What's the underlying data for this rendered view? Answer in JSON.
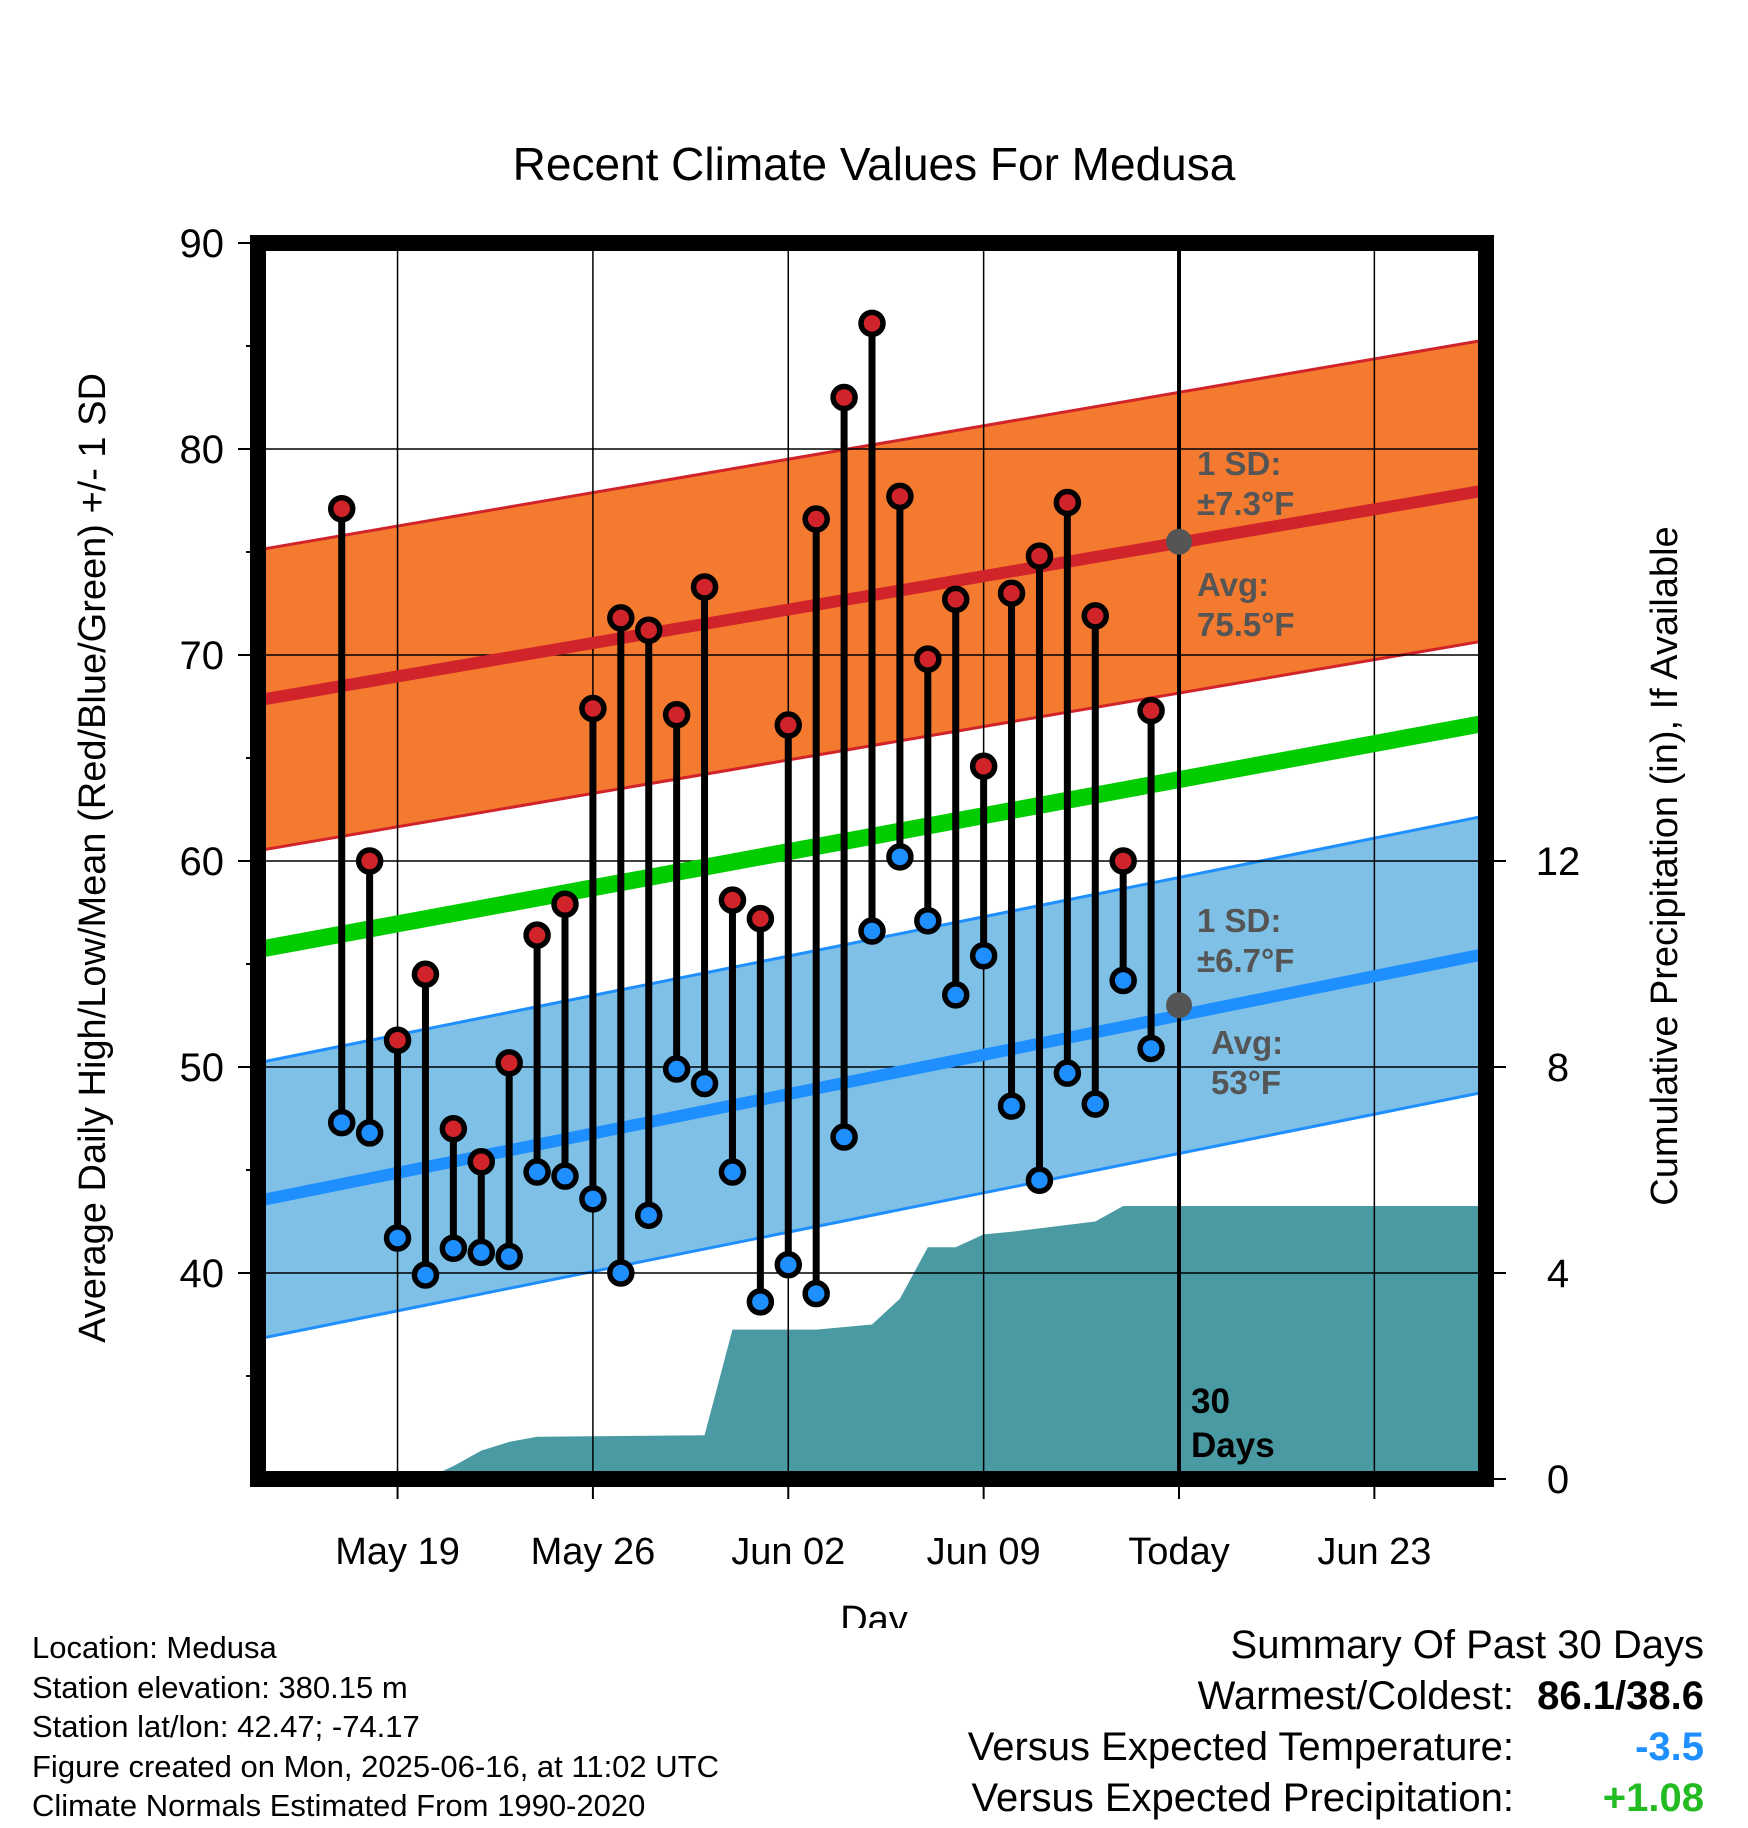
{
  "title": "Recent Climate Values For Medusa",
  "chart_data": {
    "type": "line",
    "title": "Recent Climate Values For Medusa",
    "xlabel": "Day",
    "ylabel": "Average Daily High/Low/Mean (Red/Blue/Green) +/- 1 SD",
    "y2label": "Cumulative Precipitation (in), If Available",
    "ylim": [
      30,
      90
    ],
    "y2lim": [
      0,
      30
    ],
    "yticks": [
      40,
      50,
      60,
      70,
      80,
      90
    ],
    "y2ticks": [
      0,
      4,
      8,
      12
    ],
    "xlim": [
      "2025-05-14",
      "2025-06-27"
    ],
    "x_ticks": [
      {
        "date": "2025-05-19",
        "label": "May 19"
      },
      {
        "date": "2025-05-26",
        "label": "May 26"
      },
      {
        "date": "2025-06-02",
        "label": "Jun 02"
      },
      {
        "date": "2025-06-09",
        "label": "Jun 09"
      },
      {
        "date": "2025-06-16",
        "label": "Today"
      },
      {
        "date": "2025-06-23",
        "label": "Jun 23"
      }
    ],
    "today": "2025-06-16",
    "today_label": "30 Days",
    "grid": true,
    "dates": [
      "2025-05-17",
      "2025-05-18",
      "2025-05-19",
      "2025-05-20",
      "2025-05-21",
      "2025-05-22",
      "2025-05-23",
      "2025-05-24",
      "2025-05-25",
      "2025-05-26",
      "2025-05-27",
      "2025-05-28",
      "2025-05-29",
      "2025-05-30",
      "2025-05-31",
      "2025-06-01",
      "2025-06-02",
      "2025-06-03",
      "2025-06-04",
      "2025-06-05",
      "2025-06-06",
      "2025-06-07",
      "2025-06-08",
      "2025-06-09",
      "2025-06-10",
      "2025-06-11",
      "2025-06-12",
      "2025-06-13",
      "2025-06-14",
      "2025-06-15"
    ],
    "highs": [
      77.1,
      60.0,
      51.3,
      54.5,
      47.0,
      45.4,
      50.2,
      56.4,
      57.9,
      67.4,
      71.8,
      71.2,
      67.1,
      73.3,
      58.1,
      57.2,
      66.6,
      76.6,
      82.5,
      86.1,
      77.7,
      69.8,
      72.7,
      64.6,
      73.0,
      74.8,
      77.4,
      71.9,
      60.0,
      67.3
    ],
    "lows": [
      47.3,
      46.8,
      41.7,
      39.9,
      41.2,
      41.0,
      40.8,
      44.9,
      44.7,
      43.6,
      40.0,
      42.8,
      49.9,
      49.2,
      44.9,
      38.6,
      40.4,
      39.0,
      46.6,
      56.6,
      60.2,
      57.1,
      53.5,
      55.4,
      48.1,
      44.5,
      49.7,
      48.2,
      54.2,
      50.9
    ],
    "normals": {
      "start_date": "2025-05-14",
      "end_date": "2025-06-27",
      "high_avg": [
        67.8,
        78.0
      ],
      "low_avg": [
        43.5,
        55.5
      ],
      "mean_avg": [
        55.7,
        66.7
      ],
      "high_sd": 7.3,
      "low_sd": 6.7
    },
    "precip_cumulative": {
      "dates": [
        "2025-05-14",
        "2025-05-20",
        "2025-05-21",
        "2025-05-22",
        "2025-05-23",
        "2025-05-24",
        "2025-05-30",
        "2025-05-31",
        "2025-06-03",
        "2025-06-05",
        "2025-06-06",
        "2025-06-07",
        "2025-06-08",
        "2025-06-09",
        "2025-06-10",
        "2025-06-13",
        "2025-06-14",
        "2025-06-27"
      ],
      "values": [
        0,
        0,
        0.25,
        0.55,
        0.72,
        0.82,
        0.85,
        2.9,
        2.9,
        3.0,
        3.5,
        4.5,
        4.5,
        4.75,
        4.8,
        5.0,
        5.3,
        5.3
      ]
    },
    "annotations": {
      "high_sd": "1 SD:\n±7.3°F",
      "high_avg": "Avg:\n75.5°F",
      "low_sd": "1 SD:\n±6.7°F",
      "low_avg": "Avg:\n53°F",
      "high_avg_value": 75.5,
      "low_avg_value": 53
    },
    "colors": {
      "high_band": "#f47a2f",
      "high_line": "#d1232a",
      "low_band": "#7ec0e6",
      "low_line": "#1f8fff",
      "mean_line": "#00cc00",
      "precip": "#4a9aa3",
      "high_marker": "#d1232a",
      "low_marker": "#1f8fff",
      "annotation": "#555555"
    }
  },
  "footer": {
    "location": "Location: Medusa",
    "elevation": "Station elevation: 380.15 m",
    "latlon": "Station lat/lon: 42.47; -74.17",
    "created": "Figure created on Mon, 2025-06-16, at 11:02 UTC",
    "normals": "Climate Normals Estimated From 1990-2020"
  },
  "summary": {
    "title": "Summary Of Past 30 Days",
    "warmest_label": "Warmest/Coldest:",
    "warmest_value": "86.1/38.6",
    "temp_label": "Versus Expected Temperature:",
    "temp_value": "-3.5",
    "temp_color": "#1f8fff",
    "precip_label": "Versus Expected Precipitation:",
    "precip_value": "+1.08",
    "precip_color": "#22bb22"
  }
}
